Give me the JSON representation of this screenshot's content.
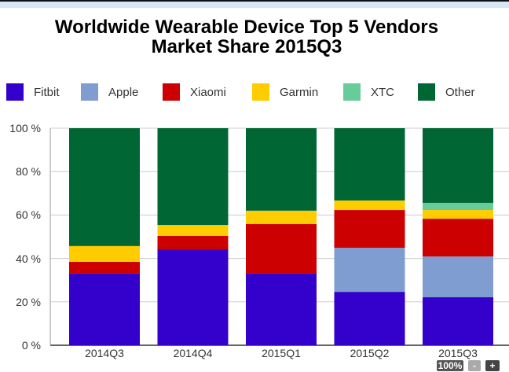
{
  "chart_data": {
    "type": "bar",
    "stacked": true,
    "title_lines": [
      "Worldwide Wearable Device Top 5 Vendors",
      "Market Share 2015Q3"
    ],
    "categories": [
      "2014Q3",
      "2014Q4",
      "2015Q1",
      "2015Q2",
      "2015Q3"
    ],
    "series": [
      {
        "name": "Fitbit",
        "color": "#3300cc",
        "values": [
          33.0,
          44.2,
          33.0,
          24.6,
          22.1
        ]
      },
      {
        "name": "Apple",
        "color": "#7f9dd0",
        "values": [
          0,
          0,
          0,
          20.3,
          18.8
        ]
      },
      {
        "name": "Xiaomi",
        "color": "#cc0000",
        "values": [
          5.4,
          6.2,
          22.8,
          17.4,
          17.4
        ]
      },
      {
        "name": "Garmin",
        "color": "#ffcc00",
        "values": [
          7.3,
          5.0,
          6.2,
          4.4,
          4.0
        ]
      },
      {
        "name": "XTC",
        "color": "#66cc99",
        "values": [
          0,
          0,
          0,
          0,
          3.3
        ]
      },
      {
        "name": "Other",
        "color": "#006633",
        "values": [
          54.3,
          44.6,
          38.0,
          33.3,
          34.4
        ]
      }
    ],
    "yticks": [
      "0 %",
      "20 %",
      "40 %",
      "60 %",
      "80 %",
      "100 %"
    ],
    "ylim": [
      0,
      100
    ],
    "grid": true,
    "legend_position": "top"
  },
  "zoom_controls": {
    "level": "100%",
    "minus": "-",
    "plus": "+"
  }
}
